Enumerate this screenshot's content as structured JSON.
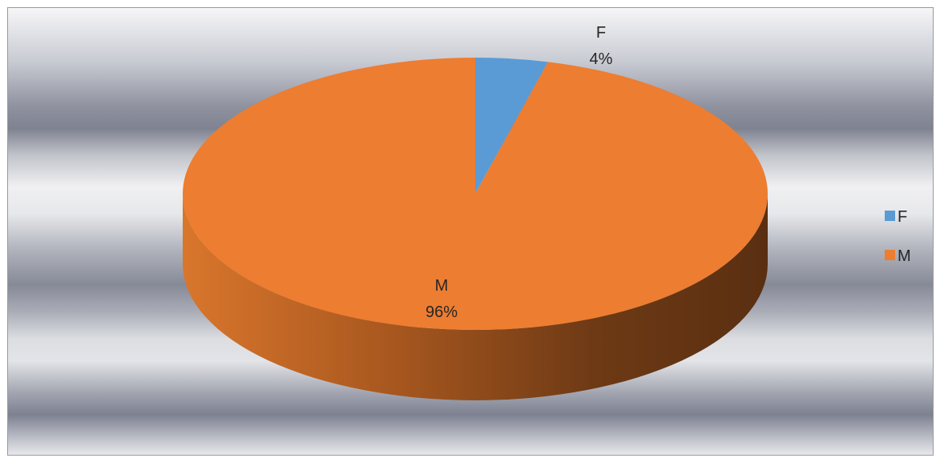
{
  "chart_data": {
    "type": "pie",
    "style": "3d",
    "title": "",
    "slices": [
      {
        "label": "F",
        "percent": 4,
        "percent_label": "4%",
        "color": "#5b9bd5"
      },
      {
        "label": "M",
        "percent": 96,
        "percent_label": "96%",
        "color": "#ed7d31"
      }
    ],
    "legend": {
      "position": "right",
      "entries": [
        {
          "label": "F",
          "color": "#5b9bd5"
        },
        {
          "label": "M",
          "color": "#ed7d31"
        }
      ]
    }
  }
}
